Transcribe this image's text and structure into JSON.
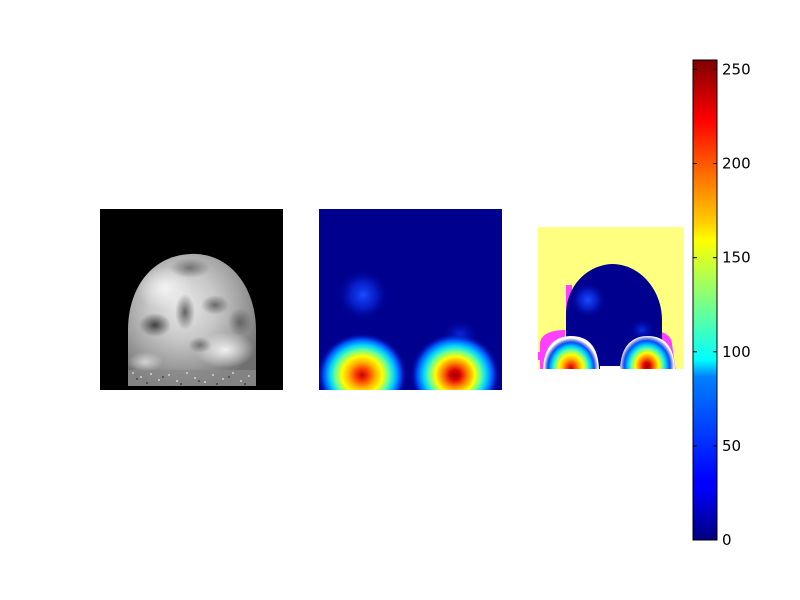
{
  "chart_data": [
    {
      "type": "heatmap",
      "panel": "input-image",
      "colormap": "gray",
      "description_visible": "grayscale blob image",
      "title": "",
      "xlabel": "",
      "ylabel": ""
    },
    {
      "type": "heatmap",
      "panel": "response-map",
      "colormap": "jet",
      "title": "",
      "xlabel": "",
      "ylabel": "",
      "hotspots": [
        {
          "name": "left-hotspot",
          "peak_value": 230
        },
        {
          "name": "right-hotspot",
          "peak_value": 250
        },
        {
          "name": "upper-left-glow",
          "peak_value": 60
        },
        {
          "name": "mid-right-glow",
          "peak_value": 45
        }
      ]
    },
    {
      "type": "heatmap",
      "panel": "overlay-map",
      "colormap": "jet",
      "background_value": 170,
      "title": "",
      "xlabel": "",
      "ylabel": ""
    }
  ],
  "colorbar": {
    "colormap": "jet",
    "min": 0,
    "max": 255,
    "ticks": [
      0,
      50,
      100,
      150,
      200,
      250
    ],
    "tick_labels": [
      "0",
      "50",
      "100",
      "150",
      "200",
      "250"
    ]
  },
  "colors": {
    "jet_dark_blue": "#00007f",
    "jet_blue": "#0000ff",
    "jet_cyan": "#00ffff",
    "jet_yellow": "#ffff00",
    "jet_red": "#ff0000",
    "jet_dark_red": "#7f0000",
    "overlay_background": "#ffff80",
    "overlay_edge_magenta": "#ff40ff"
  }
}
